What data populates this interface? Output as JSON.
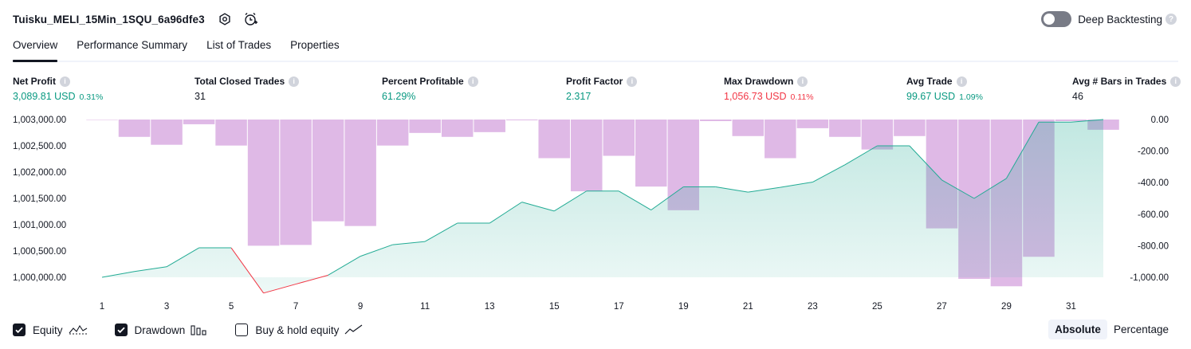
{
  "title": {
    "strategy_name": "Tuisku_MELI_15Min_1SQU_6a96dfe3",
    "icons": [
      "settings-icon",
      "add-alert-icon"
    ]
  },
  "deep_backtesting": {
    "label": "Deep Backtesting",
    "enabled": false,
    "help_icon": "question-icon"
  },
  "tabs": [
    {
      "label": "Overview",
      "active": true
    },
    {
      "label": "Performance Summary",
      "active": false
    },
    {
      "label": "List of Trades",
      "active": false
    },
    {
      "label": "Properties",
      "active": false
    }
  ],
  "metrics": [
    {
      "label": "Net Profit",
      "value": "3,089.81 USD",
      "sub": "0.31%",
      "color": "#089981"
    },
    {
      "label": "Total Closed Trades",
      "value": "31",
      "sub": "",
      "color": "#131722"
    },
    {
      "label": "Percent Profitable",
      "value": "61.29%",
      "sub": "",
      "color": "#089981"
    },
    {
      "label": "Profit Factor",
      "value": "2.317",
      "sub": "",
      "color": "#089981"
    },
    {
      "label": "Max Drawdown",
      "value": "1,056.73 USD",
      "sub": "0.11%",
      "color": "#f23645"
    },
    {
      "label": "Avg Trade",
      "value": "99.67 USD",
      "sub": "1.09%",
      "color": "#089981"
    },
    {
      "label": "Avg # Bars in Trades",
      "value": "46",
      "sub": "",
      "color": "#131722"
    }
  ],
  "chart_data": {
    "type": "line",
    "x_ticks": [
      "1",
      "3",
      "5",
      "7",
      "9",
      "11",
      "13",
      "15",
      "17",
      "19",
      "21",
      "23",
      "25",
      "27",
      "29",
      "31"
    ],
    "left_axis": {
      "range": [
        1000000,
        1003000
      ],
      "ticks": [
        "1,003,000.00",
        "1,002,500.00",
        "1,002,000.00",
        "1,001,500.00",
        "1,001,000.00",
        "1,000,500.00",
        "1,000,000.00"
      ]
    },
    "right_axis": {
      "range": [
        -1000,
        0
      ],
      "ticks": [
        "0.00",
        "-200.00",
        "-400.00",
        "-600.00",
        "-800.00",
        "-1,000.00"
      ]
    },
    "series": [
      {
        "name": "Equity",
        "axis": "left",
        "color": "#22ab94",
        "x": [
          1,
          2,
          3,
          4,
          5,
          6,
          7,
          8,
          9,
          10,
          11,
          12,
          13,
          14,
          15,
          16,
          17,
          18,
          19,
          20,
          21,
          22,
          23,
          24,
          25,
          26,
          27,
          28,
          29,
          30,
          31,
          32
        ],
        "values": [
          1000000,
          1000110,
          1000200,
          1000560,
          1000560,
          999700,
          999870,
          1000040,
          1000400,
          1000620,
          1000680,
          1001030,
          1001030,
          1001430,
          1001260,
          1001640,
          1001640,
          1001280,
          1001720,
          1001720,
          1001620,
          1001710,
          1001810,
          1002140,
          1002500,
          1002500,
          1001850,
          1001500,
          1001880,
          1002950,
          1002950,
          1003000
        ]
      },
      {
        "name": "Drawdown",
        "axis": "right",
        "color": "#ce93d8",
        "type": "bar",
        "x": [
          1,
          2,
          3,
          4,
          5,
          6,
          7,
          8,
          9,
          10,
          11,
          12,
          13,
          14,
          15,
          16,
          17,
          18,
          19,
          20,
          21,
          22,
          23,
          24,
          25,
          26,
          27,
          28,
          29,
          30,
          31,
          32
        ],
        "values": [
          0,
          -110,
          -160,
          -30,
          -165,
          -800,
          -795,
          -645,
          -675,
          -165,
          -85,
          -110,
          -80,
          -5,
          -245,
          -455,
          -230,
          -425,
          -575,
          -10,
          -105,
          -245,
          -55,
          -110,
          -190,
          -105,
          -690,
          -1010,
          -1057,
          -870,
          -10,
          -65
        ]
      }
    ],
    "legend": [
      {
        "label": "Equity",
        "checked": true,
        "icon": "equity-line-icon"
      },
      {
        "label": "Drawdown",
        "checked": true,
        "icon": "drawdown-bars-icon"
      },
      {
        "label": "Buy & hold equity",
        "checked": false,
        "icon": "buy-hold-line-icon"
      }
    ],
    "modes": [
      {
        "label": "Absolute",
        "active": true
      },
      {
        "label": "Percentage",
        "active": false
      }
    ]
  }
}
